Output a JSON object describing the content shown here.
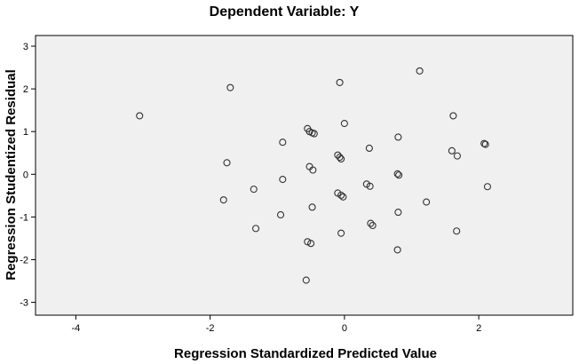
{
  "chart_data": {
    "type": "scatter",
    "title": "Dependent Variable: Y",
    "xlabel": "Regression Standardized Predicted Value",
    "ylabel": "Regression Studentized Residual",
    "xlim": [
      -4.6,
      3.4
    ],
    "ylim": [
      -3.3,
      3.25
    ],
    "xticks": [
      -4,
      -2,
      0,
      2
    ],
    "yticks": [
      -3,
      -2,
      -1,
      0,
      1,
      2,
      3
    ],
    "xtick_labels": [
      "-4",
      "-2",
      "0",
      "2"
    ],
    "ytick_labels": [
      "-3",
      "-2",
      "-1",
      "0",
      "1",
      "2",
      "3"
    ],
    "grid": false,
    "colors": {
      "plot_background": "#f0f0f0",
      "marker_edge": "#333333",
      "frame": "#000000"
    },
    "series": [
      {
        "x": [
          -3.05,
          -1.7,
          -0.07,
          1.12,
          -0.55,
          -0.52,
          -0.48,
          -0.45,
          0.0,
          -0.92,
          -1.75,
          -0.52,
          -0.47,
          -0.1,
          -0.07,
          -0.05,
          0.37,
          0.8,
          1.62,
          1.6,
          1.68,
          2.08,
          2.1,
          0.79,
          0.81,
          -0.92,
          -1.35,
          0.33,
          0.38,
          -0.1,
          -0.05,
          -0.02,
          2.13,
          -1.8,
          1.22,
          -0.48,
          0.8,
          -0.95,
          0.39,
          0.42,
          -1.32,
          -0.05,
          -0.55,
          -0.5,
          0.79,
          1.67,
          -0.57
        ],
        "y": [
          1.37,
          2.03,
          2.15,
          2.42,
          1.07,
          1.0,
          0.97,
          0.95,
          1.19,
          0.75,
          0.27,
          0.18,
          0.1,
          0.45,
          0.4,
          0.36,
          0.61,
          0.87,
          1.37,
          0.55,
          0.43,
          0.72,
          0.7,
          0.01,
          -0.02,
          -0.12,
          -0.35,
          -0.23,
          -0.28,
          -0.44,
          -0.49,
          -0.53,
          -0.29,
          -0.6,
          -0.65,
          -0.77,
          -0.89,
          -0.95,
          -1.15,
          -1.2,
          -1.27,
          -1.38,
          -1.58,
          -1.62,
          -1.77,
          -1.33,
          -2.48
        ]
      }
    ]
  }
}
